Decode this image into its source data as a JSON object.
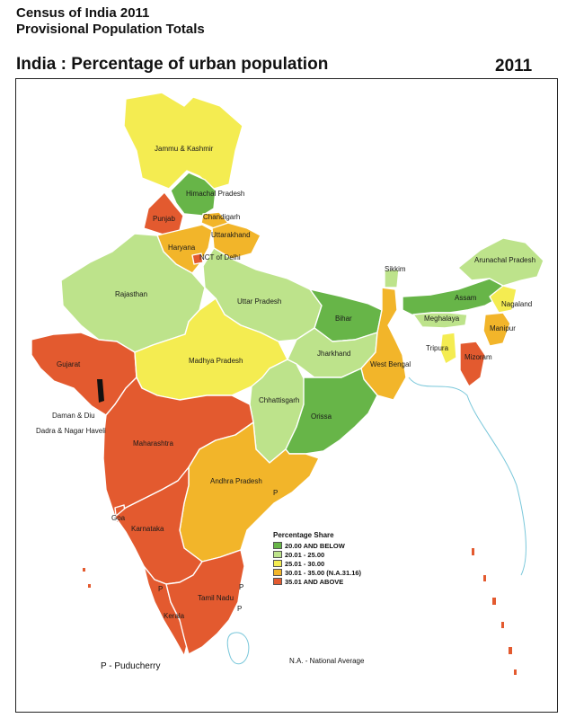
{
  "header": {
    "line1": "Census of India 2011",
    "line2": "Provisional Population Totals",
    "map_title": "India : Percentage of urban population",
    "year": "2011"
  },
  "colors": {
    "cat1": "#67b548",
    "cat2": "#bde38b",
    "cat3": "#f4ec51",
    "cat4": "#f2b52a",
    "cat5": "#e35a2f",
    "sea_line": "#79c7da"
  },
  "legend": {
    "title": "Percentage Share",
    "items": [
      {
        "label": "20.00 AND BELOW",
        "color": "#67b548"
      },
      {
        "label": "20.01 - 25.00",
        "color": "#bde38b"
      },
      {
        "label": "25.01 - 30.00",
        "color": "#f4ec51"
      },
      {
        "label": "30.01 - 35.00 (N.A.31.16)",
        "color": "#f2b52a"
      },
      {
        "label": "35.01 AND ABOVE",
        "color": "#e35a2f"
      }
    ]
  },
  "states": {
    "jk": "Jammu & Kashmir",
    "hp": "Himachal Pradesh",
    "pb": "Punjab",
    "ch": "Chandigarh",
    "uk": "Uttarakhand",
    "hr": "Haryana",
    "dl": "NCT of Delhi",
    "rj": "Rajasthan",
    "up": "Uttar Pradesh",
    "bh": "Bihar",
    "sk": "Sikkim",
    "ar": "Arunachal Pradesh",
    "as": "Assam",
    "nl": "Nagaland",
    "ml": "Meghalaya",
    "mn": "Manipur",
    "tr": "Tripura",
    "mz": "Mizoram",
    "jh": "Jharkhand",
    "wb": "West Bengal",
    "gj": "Gujarat",
    "mp": "Madhya Pradesh",
    "cg": "Chhattisgarh",
    "od": "Orissa",
    "dd": "Daman & Diu",
    "dn": "Dadra & Nagar Haveli",
    "mh": "Maharashtra",
    "ap": "Andhra Pradesh",
    "ga": "Goa",
    "ka": "Karnataka",
    "tn": "Tamil Nadu",
    "kl": "Kerala",
    "p": "P"
  },
  "notes": {
    "puducherry": "P - Puducherry",
    "na": "N.A. - National Average"
  }
}
